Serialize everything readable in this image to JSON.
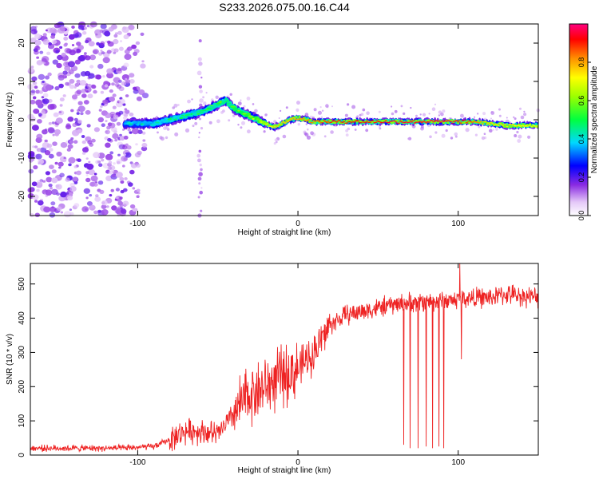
{
  "title": "S233.2026.075.00.16.C44",
  "chart_data": [
    {
      "type": "heatmap",
      "xlabel": "Height of straight line (km)",
      "ylabel": "Frequency (Hz)",
      "xlim": [
        -167,
        150
      ],
      "ylim": [
        -25,
        25
      ],
      "xticks": [
        -100,
        0,
        100
      ],
      "yticks": [
        -20,
        -10,
        0,
        10,
        20
      ],
      "colorbar": {
        "label": "Normalized spectral amplitude",
        "ticks": [
          0.0,
          0.2,
          0.4,
          0.6,
          0.8
        ],
        "range": [
          0,
          1
        ]
      },
      "ridge": {
        "x": [
          -105,
          -90,
          -80,
          -70,
          -60,
          -50,
          -45,
          -40,
          -35,
          -30,
          -25,
          -20,
          -15,
          -10,
          -5,
          0,
          5,
          10,
          20,
          50,
          90,
          110,
          120,
          130,
          150
        ],
        "y": [
          -1,
          -1,
          0,
          1,
          2,
          4,
          5,
          3,
          2,
          1,
          0,
          -1,
          -2,
          -1,
          0,
          0.5,
          0,
          -0.5,
          -0.5,
          -0.5,
          -0.5,
          -0.5,
          -1,
          -1.5,
          -1.5
        ]
      },
      "ridge_amplitude": {
        "x": [
          -105,
          -80,
          -50,
          -25,
          -15,
          0,
          20,
          60,
          100,
          120,
          150
        ],
        "a": [
          0.4,
          0.45,
          0.5,
          0.6,
          0.75,
          0.8,
          0.9,
          0.95,
          0.95,
          0.75,
          0.7
        ]
      }
    },
    {
      "type": "line",
      "xlabel": "Height of straight line (km)",
      "ylabel": "SNR (10 * v/v)",
      "xlim": [
        -167,
        150
      ],
      "ylim": [
        0,
        560
      ],
      "xticks": [
        -100,
        0,
        100
      ],
      "yticks": [
        0,
        100,
        200,
        300,
        400,
        500
      ],
      "color": "#ee2222",
      "baseline": {
        "x": [
          -167,
          -110,
          -90,
          -80,
          -70,
          -60,
          -50,
          -40,
          -30,
          -20,
          -10,
          0,
          10,
          20,
          30,
          40,
          50,
          60,
          70,
          80,
          90,
          100,
          110,
          120,
          130,
          140,
          150
        ],
        "y": [
          20,
          20,
          25,
          45,
          70,
          70,
          60,
          120,
          180,
          200,
          230,
          250,
          300,
          380,
          410,
          420,
          430,
          440,
          445,
          450,
          450,
          455,
          460,
          460,
          470,
          465,
          460
        ]
      },
      "dropouts": [
        {
          "x": 66,
          "y": 30
        },
        {
          "x": 70,
          "y": 20
        },
        {
          "x": 75,
          "y": 20
        },
        {
          "x": 80,
          "y": 25
        },
        {
          "x": 84,
          "y": 20
        },
        {
          "x": 88,
          "y": 25
        },
        {
          "x": 91,
          "y": 20
        }
      ],
      "spikes": [
        {
          "x": 101,
          "y": 560
        },
        {
          "x": 102,
          "y": 280
        }
      ]
    }
  ]
}
